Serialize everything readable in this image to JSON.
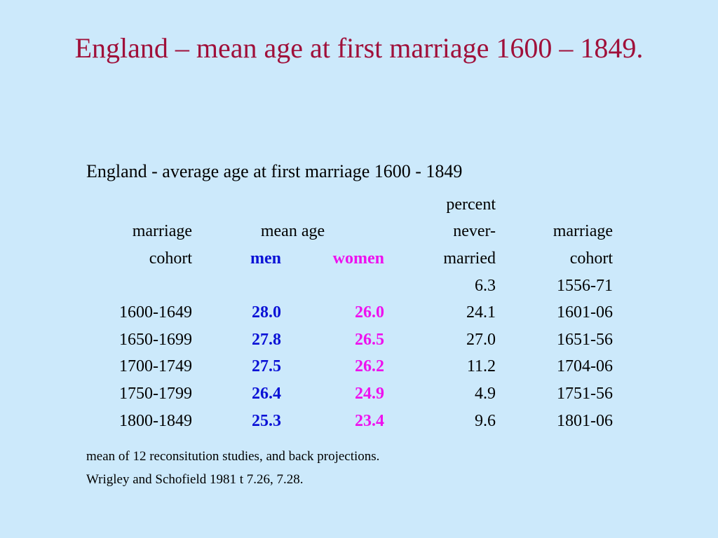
{
  "title": "England – mean age at first marriage 1600 – 1849.",
  "subtitle": "England - average age at first marriage 1600 - 1849",
  "headers": {
    "cohort_line1": "marriage",
    "cohort_line2": "cohort",
    "mean_age": "mean age",
    "men": "men",
    "women": "women",
    "pct_line1": "percent",
    "pct_line2": "never-",
    "pct_line3": "married",
    "cohort2_line1": "marriage",
    "cohort2_line2": "cohort"
  },
  "extra_row": {
    "percent": "6.3",
    "cohort2": "1556-71"
  },
  "rows": [
    {
      "cohort": "1600-1649",
      "men": "28.0",
      "women": "26.0",
      "percent": "24.1",
      "cohort2": "1601-06"
    },
    {
      "cohort": "1650-1699",
      "men": "27.8",
      "women": "26.5",
      "percent": "27.0",
      "cohort2": "1651-56"
    },
    {
      "cohort": "1700-1749",
      "men": "27.5",
      "women": "26.2",
      "percent": "11.2",
      "cohort2": "1704-06"
    },
    {
      "cohort": "1750-1799",
      "men": "26.4",
      "women": "24.9",
      "percent": "4.9",
      "cohort2": "1751-56"
    },
    {
      "cohort": "1800-1849",
      "men": "25.3",
      "women": "23.4",
      "percent": "9.6",
      "cohort2": "1801-06"
    }
  ],
  "notes": [
    "mean of 12 reconsitution studies, and back projections.",
    "Wrigley and Schofield 1981 t 7.26, 7.28."
  ],
  "colors": {
    "title": "#a0103a",
    "men": "#0b12d6",
    "women": "#ee11ee",
    "background": "#cce9fb"
  }
}
